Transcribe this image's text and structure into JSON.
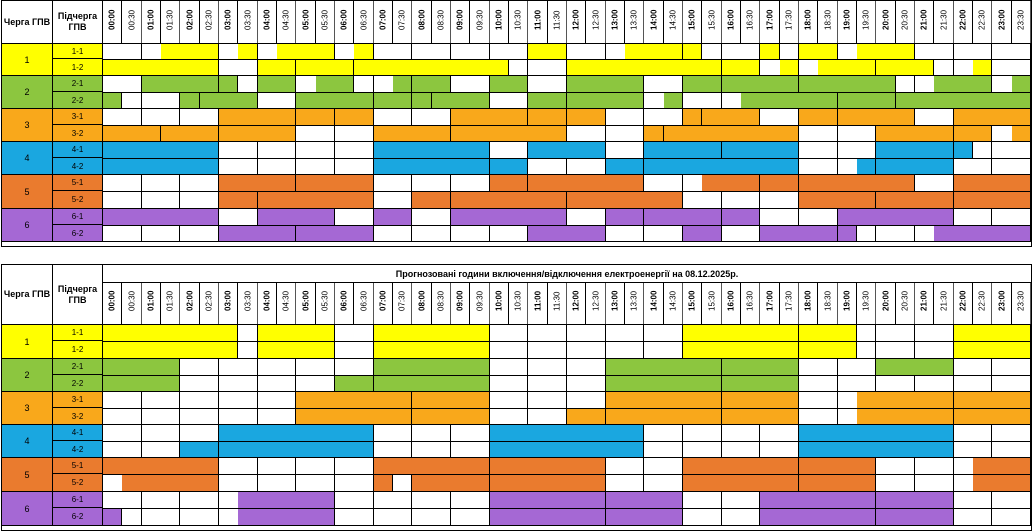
{
  "headers": {
    "queue": "Черга ГПВ",
    "subqueue": "Підчерга ГПВ"
  },
  "times": [
    "00:00",
    "00:30",
    "01:00",
    "01:30",
    "02:00",
    "02:30",
    "03:00",
    "03:30",
    "04:00",
    "04:30",
    "05:00",
    "05:30",
    "06:00",
    "06:30",
    "07:00",
    "07:30",
    "08:00",
    "08:30",
    "09:00",
    "09:30",
    "10:00",
    "10:30",
    "11:00",
    "11:30",
    "12:00",
    "12:30",
    "13:00",
    "13:30",
    "14:00",
    "14:30",
    "15:00",
    "15:30",
    "16:00",
    "16:30",
    "17:00",
    "17:30",
    "18:00",
    "18:30",
    "19:00",
    "19:30",
    "20:00",
    "20:30",
    "21:00",
    "21:30",
    "22:00",
    "22:30",
    "23:00",
    "23:30"
  ],
  "colors": {
    "1": "#ffff00",
    "2": "#8cc63f",
    "3": "#f9a81b",
    "4": "#1aa7e0",
    "5": "#ea7b2e",
    "6": "#a568d4"
  },
  "tables": [
    {
      "title": "",
      "groups": [
        {
          "queue": "1",
          "rows": [
            {
              "label": "1-1",
              "off": [
                [
                  3,
                  6
                ],
                [
                  7,
                  8
                ],
                [
                  9,
                  12
                ],
                [
                  13,
                  14
                ],
                [
                  22,
                  24
                ],
                [
                  27,
                  30
                ],
                [
                  30,
                  31
                ],
                [
                  34,
                  35
                ],
                [
                  36,
                  38
                ],
                [
                  39,
                  42
                ]
              ]
            },
            {
              "label": "1-2",
              "off": [
                [
                  0,
                  6
                ],
                [
                  8,
                  10
                ],
                [
                  10,
                  13
                ],
                [
                  13,
                  21
                ],
                [
                  24,
                  32
                ],
                [
                  32,
                  34
                ],
                [
                  35,
                  36
                ],
                [
                  37,
                  40
                ],
                [
                  40,
                  43
                ],
                [
                  45,
                  46
                ]
              ]
            }
          ]
        },
        {
          "queue": "2",
          "rows": [
            {
              "label": "2-1",
              "off": [
                [
                  2,
                  6
                ],
                [
                  6,
                  7
                ],
                [
                  8,
                  10
                ],
                [
                  11,
                  13
                ],
                [
                  15,
                  16
                ],
                [
                  16,
                  18
                ],
                [
                  20,
                  22
                ],
                [
                  24,
                  28
                ],
                [
                  30,
                  32
                ],
                [
                  32,
                  36
                ],
                [
                  36,
                  41
                ],
                [
                  43,
                  46
                ],
                [
                  47,
                  48
                ]
              ]
            },
            {
              "label": "2-2",
              "off": [
                [
                  0,
                  1
                ],
                [
                  4,
                  5
                ],
                [
                  5,
                  8
                ],
                [
                  10,
                  14
                ],
                [
                  14,
                  16
                ],
                [
                  16,
                  17
                ],
                [
                  17,
                  20
                ],
                [
                  22,
                  24
                ],
                [
                  24,
                  28
                ],
                [
                  29,
                  30
                ],
                [
                  33,
                  38
                ],
                [
                  38,
                  41
                ],
                [
                  41,
                  48
                ]
              ]
            }
          ]
        },
        {
          "queue": "3",
          "rows": [
            {
              "label": "3-1",
              "off": [
                [
                  6,
                  10
                ],
                [
                  10,
                  12
                ],
                [
                  12,
                  14
                ],
                [
                  18,
                  22
                ],
                [
                  22,
                  24
                ],
                [
                  24,
                  26
                ],
                [
                  30,
                  31
                ],
                [
                  31,
                  34
                ],
                [
                  36,
                  38
                ],
                [
                  38,
                  42
                ],
                [
                  44,
                  48
                ]
              ]
            },
            {
              "label": "3-2",
              "off": [
                [
                  0,
                  3
                ],
                [
                  3,
                  6
                ],
                [
                  6,
                  10
                ],
                [
                  14,
                  18
                ],
                [
                  18,
                  24
                ],
                [
                  28,
                  29
                ],
                [
                  29,
                  36
                ],
                [
                  40,
                  44
                ],
                [
                  44,
                  46
                ],
                [
                  47,
                  48
                ]
              ]
            }
          ]
        },
        {
          "queue": "4",
          "rows": [
            {
              "label": "4-1",
              "off": [
                [
                  0,
                  6
                ],
                [
                  14,
                  20
                ],
                [
                  22,
                  26
                ],
                [
                  28,
                  32
                ],
                [
                  32,
                  36
                ],
                [
                  40,
                  44
                ],
                [
                  44,
                  45
                ]
              ]
            },
            {
              "label": "4-2",
              "off": [
                [
                  0,
                  6
                ],
                [
                  14,
                  20
                ],
                [
                  20,
                  22
                ],
                [
                  26,
                  28
                ],
                [
                  28,
                  36
                ],
                [
                  39,
                  40
                ],
                [
                  40,
                  44
                ]
              ]
            }
          ]
        },
        {
          "queue": "5",
          "rows": [
            {
              "label": "5-1",
              "off": [
                [
                  6,
                  10
                ],
                [
                  10,
                  14
                ],
                [
                  20,
                  22
                ],
                [
                  22,
                  28
                ],
                [
                  31,
                  34
                ],
                [
                  34,
                  36
                ],
                [
                  36,
                  42
                ],
                [
                  44,
                  48
                ]
              ]
            },
            {
              "label": "5-2",
              "off": [
                [
                  6,
                  8
                ],
                [
                  8,
                  14
                ],
                [
                  16,
                  18
                ],
                [
                  18,
                  24
                ],
                [
                  24,
                  30
                ],
                [
                  36,
                  40
                ],
                [
                  40,
                  44
                ],
                [
                  44,
                  48
                ]
              ]
            }
          ]
        },
        {
          "queue": "6",
          "rows": [
            {
              "label": "6-1",
              "off": [
                [
                  0,
                  6
                ],
                [
                  8,
                  12
                ],
                [
                  14,
                  16
                ],
                [
                  18,
                  24
                ],
                [
                  26,
                  28
                ],
                [
                  28,
                  32
                ],
                [
                  32,
                  34
                ],
                [
                  38,
                  44
                ]
              ]
            },
            {
              "label": "6-2",
              "off": [
                [
                  6,
                  10
                ],
                [
                  10,
                  14
                ],
                [
                  22,
                  26
                ],
                [
                  30,
                  32
                ],
                [
                  34,
                  38
                ],
                [
                  38,
                  39
                ],
                [
                  43,
                  48
                ]
              ]
            }
          ]
        }
      ]
    },
    {
      "title": "Прогнозовані години включення/відключення електроенергії на 08.12.2025р.",
      "groups": [
        {
          "queue": "1",
          "rows": [
            {
              "label": "1-1",
              "off": [
                [
                  0,
                  7
                ],
                [
                  8,
                  12
                ],
                [
                  14,
                  20
                ],
                [
                  30,
                  36
                ],
                [
                  36,
                  39
                ],
                [
                  44,
                  48
                ]
              ]
            },
            {
              "label": "1-2",
              "off": [
                [
                  0,
                  7
                ],
                [
                  8,
                  12
                ],
                [
                  14,
                  20
                ],
                [
                  30,
                  36
                ],
                [
                  36,
                  39
                ],
                [
                  44,
                  48
                ]
              ]
            }
          ]
        },
        {
          "queue": "2",
          "rows": [
            {
              "label": "2-1",
              "off": [
                [
                  0,
                  4
                ],
                [
                  14,
                  20
                ],
                [
                  26,
                  32
                ],
                [
                  32,
                  36
                ],
                [
                  40,
                  44
                ]
              ]
            },
            {
              "label": "2-2",
              "off": [
                [
                  0,
                  4
                ],
                [
                  12,
                  14
                ],
                [
                  14,
                  20
                ],
                [
                  26,
                  32
                ],
                [
                  32,
                  36
                ]
              ]
            }
          ]
        },
        {
          "queue": "3",
          "rows": [
            {
              "label": "3-1",
              "off": [
                [
                  10,
                  16
                ],
                [
                  16,
                  20
                ],
                [
                  26,
                  32
                ],
                [
                  32,
                  36
                ],
                [
                  39,
                  44
                ],
                [
                  44,
                  48
                ]
              ]
            },
            {
              "label": "3-2",
              "off": [
                [
                  10,
                  16
                ],
                [
                  16,
                  20
                ],
                [
                  24,
                  26
                ],
                [
                  26,
                  32
                ],
                [
                  32,
                  36
                ],
                [
                  39,
                  44
                ],
                [
                  44,
                  48
                ]
              ]
            }
          ]
        },
        {
          "queue": "4",
          "rows": [
            {
              "label": "4-1",
              "off": [
                [
                  6,
                  14
                ],
                [
                  20,
                  28
                ],
                [
                  36,
                  44
                ]
              ]
            },
            {
              "label": "4-2",
              "off": [
                [
                  4,
                  6
                ],
                [
                  6,
                  14
                ],
                [
                  20,
                  28
                ],
                [
                  36,
                  44
                ]
              ]
            }
          ]
        },
        {
          "queue": "5",
          "rows": [
            {
              "label": "5-1",
              "off": [
                [
                  0,
                  6
                ],
                [
                  14,
                  20
                ],
                [
                  20,
                  26
                ],
                [
                  30,
                  36
                ],
                [
                  36,
                  40
                ],
                [
                  45,
                  48
                ]
              ]
            },
            {
              "label": "5-2",
              "off": [
                [
                  1,
                  6
                ],
                [
                  14,
                  15
                ],
                [
                  16,
                  20
                ],
                [
                  20,
                  26
                ],
                [
                  30,
                  36
                ],
                [
                  36,
                  40
                ],
                [
                  45,
                  48
                ]
              ]
            }
          ]
        },
        {
          "queue": "6",
          "rows": [
            {
              "label": "6-1",
              "off": [
                [
                  7,
                  12
                ],
                [
                  20,
                  26
                ],
                [
                  26,
                  30
                ],
                [
                  34,
                  40
                ],
                [
                  40,
                  44
                ]
              ]
            },
            {
              "label": "6-2",
              "off": [
                [
                  0,
                  1
                ],
                [
                  7,
                  12
                ],
                [
                  20,
                  26
                ],
                [
                  26,
                  30
                ],
                [
                  34,
                  40
                ],
                [
                  40,
                  44
                ]
              ]
            }
          ]
        }
      ]
    }
  ]
}
